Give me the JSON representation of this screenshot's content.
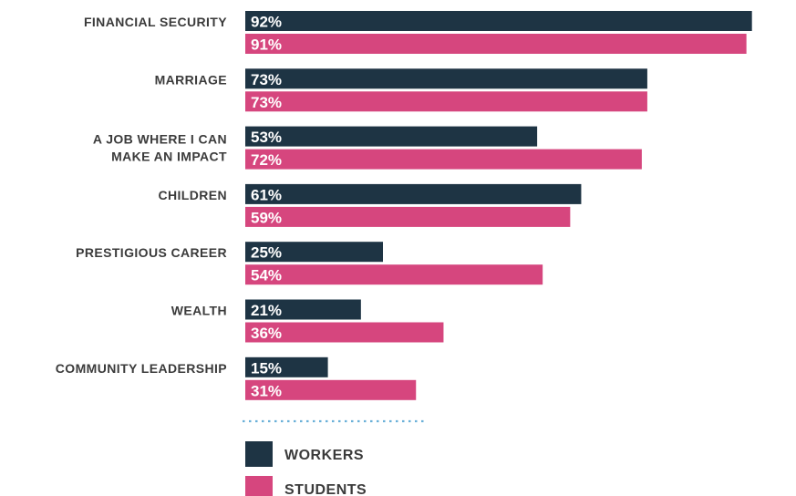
{
  "chart_data": {
    "type": "bar",
    "orientation": "horizontal",
    "categories": [
      [
        "FINANCIAL SECURITY"
      ],
      [
        "MARRIAGE"
      ],
      [
        "A JOB WHERE I CAN",
        "MAKE AN IMPACT"
      ],
      [
        "CHILDREN"
      ],
      [
        "PRESTIGIOUS CAREER"
      ],
      [
        "WEALTH"
      ],
      [
        "COMMUNITY LEADERSHIP"
      ]
    ],
    "series": [
      {
        "name": "WORKERS",
        "color": "#1e3444",
        "values": [
          92,
          73,
          53,
          61,
          25,
          21,
          15
        ]
      },
      {
        "name": "STUDENTS",
        "color": "#d6467e",
        "values": [
          91,
          73,
          72,
          59,
          54,
          36,
          31
        ]
      }
    ],
    "value_format": "{v}%",
    "xlim": [
      0,
      100
    ],
    "grid": false,
    "legend": "bottom",
    "legend_separator_color": "#6ab0d8"
  }
}
